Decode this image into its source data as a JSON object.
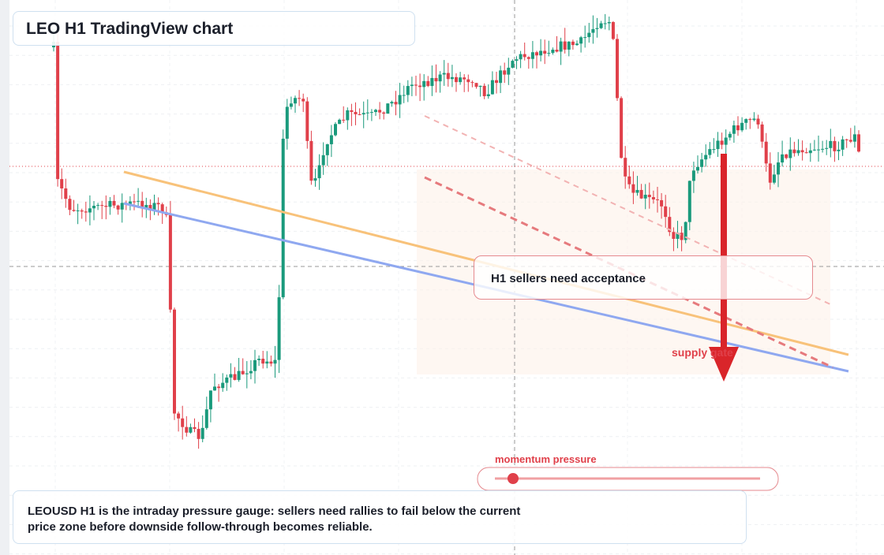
{
  "header": {
    "title": "LEO H1 TradingView chart"
  },
  "callout": {
    "text": "H1 sellers need acceptance"
  },
  "annotations": {
    "supply_label": "supply gate",
    "momentum_label": "momentum pressure"
  },
  "footer": {
    "text": "LEOUSD H1 is the intraday pressure gauge: sellers need rallies to fail below the current price zone before downside follow-through becomes reliable."
  }
}
